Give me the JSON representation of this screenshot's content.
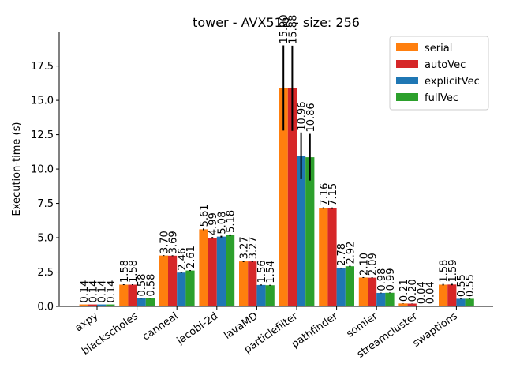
{
  "chart_data": {
    "type": "bar",
    "title": "tower - AVX512 - size: 256",
    "xlabel": "",
    "ylabel": "Execution-time (s)",
    "ylim": [
      0,
      19.95
    ],
    "yticks": [
      0.0,
      2.5,
      5.0,
      7.5,
      10.0,
      12.5,
      15.0,
      17.5
    ],
    "ytick_labels": [
      "0.0",
      "2.5",
      "5.0",
      "7.5",
      "10.0",
      "12.5",
      "15.0",
      "17.5"
    ],
    "legend_position": "top-right",
    "grid": false,
    "categories": [
      "axpy",
      "blackscholes",
      "canneal",
      "jacobi-2d",
      "lavaMD",
      "particlefilter",
      "pathfinder",
      "somier",
      "streamcluster",
      "swaptions"
    ],
    "series": [
      {
        "name": "serial",
        "color": "#ff7f0e",
        "values": [
          0.14,
          1.58,
          3.7,
          5.61,
          3.27,
          15.9,
          7.16,
          2.1,
          0.21,
          1.58
        ],
        "labels": [
          "0.14",
          "1.58",
          "3.70",
          "5.61",
          "3.27",
          "15.90",
          "7.16",
          "2.10",
          "0.21",
          "1.58"
        ],
        "errors": [
          0,
          0.03,
          0.03,
          0.06,
          0.05,
          3.1,
          0.05,
          0.03,
          0.01,
          0.05
        ]
      },
      {
        "name": "autoVec",
        "color": "#d62728",
        "values": [
          0.14,
          1.58,
          3.69,
          4.99,
          3.27,
          15.88,
          7.15,
          2.09,
          0.2,
          1.59
        ],
        "labels": [
          "0.14",
          "1.58",
          "3.69",
          "4.99",
          "3.27",
          "15.88",
          "7.15",
          "2.09",
          "0.20",
          "1.59"
        ],
        "errors": [
          0,
          0.03,
          0.03,
          0.06,
          0.05,
          3.1,
          0.05,
          0.03,
          0.01,
          0.05
        ]
      },
      {
        "name": "explicitVec",
        "color": "#1f77b4",
        "values": [
          0.14,
          0.58,
          2.46,
          5.08,
          1.56,
          10.96,
          2.78,
          0.98,
          0.04,
          0.55
        ],
        "labels": [
          "0.14",
          "0.58",
          "2.46",
          "5.08",
          "1.56",
          "10.96",
          "2.78",
          "0.98",
          "0.04",
          "0.55"
        ],
        "errors": [
          0,
          0.02,
          0.03,
          0.06,
          0.03,
          1.7,
          0.04,
          0.02,
          0.0,
          0.02
        ]
      },
      {
        "name": "fullVec",
        "color": "#2ca02c",
        "values": [
          0.14,
          0.58,
          2.61,
          5.18,
          1.54,
          10.86,
          2.92,
          0.99,
          0.04,
          0.55
        ],
        "labels": [
          "0.14",
          "0.58",
          "2.61",
          "5.18",
          "1.54",
          "10.86",
          "2.92",
          "0.99",
          "0.04",
          "0.55"
        ],
        "errors": [
          0,
          0.02,
          0.03,
          0.06,
          0.03,
          1.7,
          0.04,
          0.02,
          0.0,
          0.02
        ]
      }
    ]
  }
}
